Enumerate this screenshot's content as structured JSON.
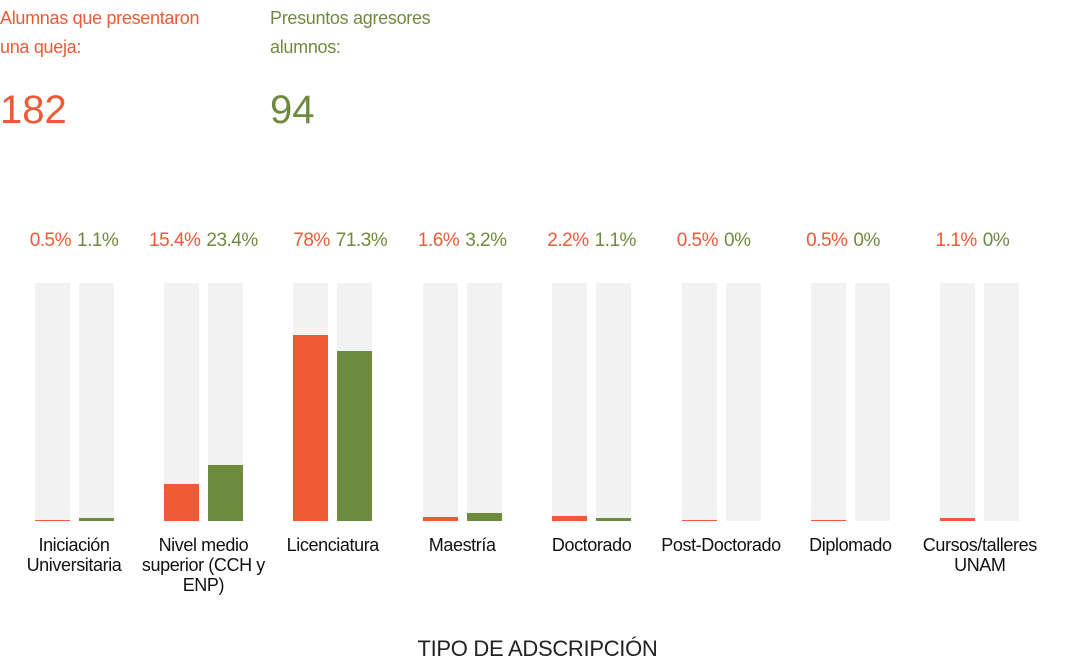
{
  "chart_data": {
    "type": "bar",
    "x_label": "TIPO DE ADSCRIPCIÓN",
    "categories": [
      "Iniciación Universitaria",
      "Nivel medio superior (CCH y ENP)",
      "Licenciatura",
      "Maestría",
      "Doctorado",
      "Post-Doctorado",
      "Diplomado",
      "Cursos/talleres UNAM"
    ],
    "ylim": [
      0,
      100
    ],
    "series": [
      {
        "name": "Alumnas que presentaron una queja:",
        "color": "#ee5a35",
        "total": 182,
        "values": [
          0.5,
          15.4,
          78,
          1.6,
          2.2,
          0.5,
          0.5,
          1.1
        ],
        "value_labels": [
          "0.5%",
          "15.4%",
          "78%",
          "1.6%",
          "2.2%",
          "0.5%",
          "0.5%",
          "1.1%"
        ]
      },
      {
        "name": "Presuntos agresores alumnos:",
        "color": "#6e8b3d",
        "total": 94,
        "values": [
          1.1,
          23.4,
          71.3,
          3.2,
          1.1,
          0,
          0,
          0
        ],
        "value_labels": [
          "1.1%",
          "23.4%",
          "71.3%",
          "3.2%",
          "1.1%",
          "0%",
          "0%",
          "0%"
        ]
      }
    ]
  }
}
